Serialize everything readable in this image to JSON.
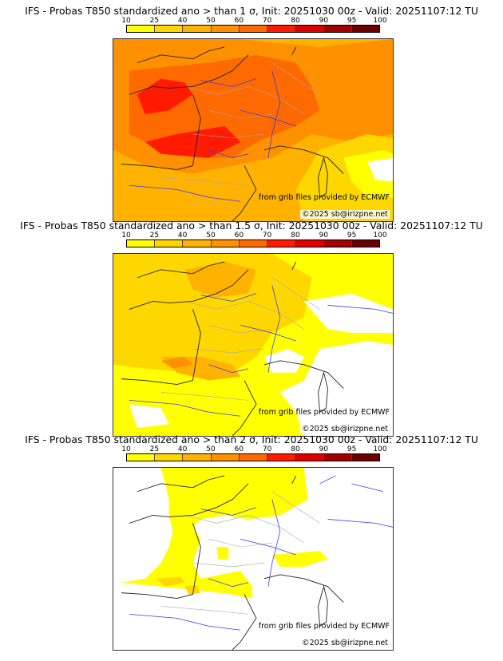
{
  "colorbar": {
    "ticks": [
      "10",
      "25",
      "40",
      "50",
      "60",
      "70",
      "80",
      "90",
      "95",
      "100"
    ],
    "colors": [
      "#ffff00",
      "#ffd700",
      "#ffb300",
      "#ff9000",
      "#ff6a00",
      "#ff1a00",
      "#dd0000",
      "#a00000",
      "#6a0000"
    ]
  },
  "panels": [
    {
      "title": "IFS - Probas T850  standardized ano > than 1 σ, Init: 20251030 00z - Valid: 20251107:12 TU",
      "threshold_sigma": "1",
      "source_credit": "from grib files provided by ECMWF",
      "copyright": "©2025 sb@irizpne.net"
    },
    {
      "title": "IFS - Probas T850  standardized ano > than 1.5 σ, Init: 20251030 00z - Valid: 20251107:12 TU",
      "threshold_sigma": "1.5",
      "source_credit": "from grib files provided by ECMWF",
      "copyright": "©2025 sb@irizpne.net"
    },
    {
      "title": "IFS - Probas T850  standardized ano > than 2 σ, Init: 20251030 00z - Valid: 20251107:12 TU",
      "threshold_sigma": "2",
      "source_credit": "from grib files provided by ECMWF",
      "copyright": "©2025 sb@irizpne.net"
    }
  ],
  "colors": {
    "coastline": "#222222",
    "rivers": "#3a3af0",
    "borders": "#a8a8a8",
    "land_white": "#ffffff"
  }
}
